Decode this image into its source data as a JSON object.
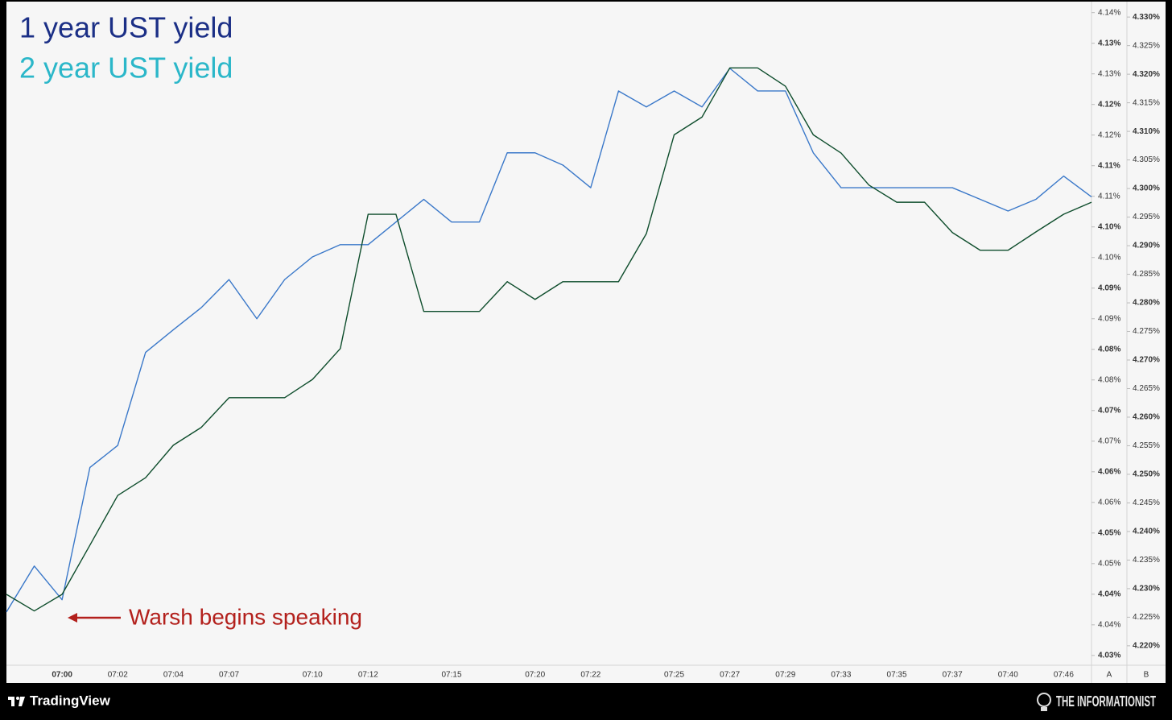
{
  "chart_data": {
    "type": "line",
    "annotation": "Warsh begins speaking",
    "annotation_color": "#b3201c",
    "footer_left": "TradingView",
    "footer_right": "THE INFORMATIONIST",
    "axis_labels": [
      "A",
      "B"
    ],
    "categories": [
      null,
      null,
      "07:00",
      null,
      "07:02",
      null,
      "07:04",
      null,
      "07:07",
      null,
      null,
      "07:10",
      null,
      "07:12",
      null,
      null,
      "07:15",
      null,
      null,
      "07:20",
      null,
      "07:22",
      null,
      null,
      "07:25",
      null,
      "07:27",
      null,
      "07:29",
      null,
      "07:33",
      null,
      "07:35",
      null,
      "07:37",
      null,
      "07:40",
      null,
      "07:46",
      null
    ],
    "series": [
      {
        "name": "1 year UST yield",
        "legend_color": "#1b2f86",
        "color": "#3a78c9",
        "axis": "y",
        "values": [
          4.0371,
          4.0446,
          4.0391,
          4.0607,
          4.0643,
          4.0795,
          4.0832,
          4.0868,
          4.0914,
          4.085,
          4.0914,
          4.0951,
          4.0971,
          4.0971,
          4.1008,
          4.1045,
          4.1008,
          4.1008,
          4.1121,
          4.1121,
          4.1101,
          4.1064,
          4.1222,
          4.1196,
          4.1222,
          4.1196,
          4.1259,
          4.1222,
          4.1222,
          4.1121,
          4.1064,
          4.1064,
          4.1064,
          4.1064,
          4.1064,
          4.1045,
          4.1026,
          4.1045,
          4.1083,
          4.1049
        ]
      },
      {
        "name": "2 year UST yield",
        "legend_color": "#2bb7c9",
        "color": "#0e4d2c",
        "axis": "y2",
        "values": [
          4.229,
          4.2261,
          4.229,
          4.2376,
          4.2463,
          4.2494,
          4.2551,
          4.2582,
          4.2634,
          4.2634,
          4.2634,
          4.2666,
          4.272,
          4.2955,
          4.2955,
          4.2785,
          4.2785,
          4.2785,
          4.2837,
          4.2806,
          4.2837,
          4.2837,
          4.2837,
          4.2921,
          4.3094,
          4.3125,
          4.3211,
          4.3211,
          4.3179,
          4.3094,
          4.3062,
          4.3006,
          4.2976,
          4.2976,
          4.2923,
          4.2892,
          4.2892,
          4.2924,
          4.2955,
          4.2976
        ]
      }
    ],
    "ylim": [
      4.0284,
      4.1368
    ],
    "yticks": [
      {
        "value": 4.135,
        "label": "4.14%"
      },
      {
        "value": 4.13,
        "label": "4.13%"
      },
      {
        "value": 4.125,
        "label": "4.13%"
      },
      {
        "value": 4.12,
        "label": "4.12%"
      },
      {
        "value": 4.115,
        "label": "4.12%"
      },
      {
        "value": 4.11,
        "label": "4.11%"
      },
      {
        "value": 4.105,
        "label": "4.11%"
      },
      {
        "value": 4.1,
        "label": "4.10%"
      },
      {
        "value": 4.095,
        "label": "4.10%"
      },
      {
        "value": 4.09,
        "label": "4.09%"
      },
      {
        "value": 4.085,
        "label": "4.09%"
      },
      {
        "value": 4.08,
        "label": "4.08%"
      },
      {
        "value": 4.075,
        "label": "4.08%"
      },
      {
        "value": 4.07,
        "label": "4.07%"
      },
      {
        "value": 4.065,
        "label": "4.07%"
      },
      {
        "value": 4.06,
        "label": "4.06%"
      },
      {
        "value": 4.055,
        "label": "4.06%"
      },
      {
        "value": 4.05,
        "label": "4.05%"
      },
      {
        "value": 4.045,
        "label": "4.05%"
      },
      {
        "value": 4.04,
        "label": "4.04%"
      },
      {
        "value": 4.035,
        "label": "4.04%"
      },
      {
        "value": 4.03,
        "label": "4.03%"
      }
    ],
    "y2lim": [
      4.2166,
      4.3327
    ],
    "y2ticks": [
      {
        "value": 4.33,
        "label": "4.330%"
      },
      {
        "value": 4.325,
        "label": "4.325%"
      },
      {
        "value": 4.32,
        "label": "4.320%"
      },
      {
        "value": 4.315,
        "label": "4.315%"
      },
      {
        "value": 4.31,
        "label": "4.310%"
      },
      {
        "value": 4.305,
        "label": "4.305%"
      },
      {
        "value": 4.3,
        "label": "4.300%"
      },
      {
        "value": 4.295,
        "label": "4.295%"
      },
      {
        "value": 4.29,
        "label": "4.290%"
      },
      {
        "value": 4.285,
        "label": "4.285%"
      },
      {
        "value": 4.28,
        "label": "4.280%"
      },
      {
        "value": 4.275,
        "label": "4.275%"
      },
      {
        "value": 4.27,
        "label": "4.270%"
      },
      {
        "value": 4.265,
        "label": "4.265%"
      },
      {
        "value": 4.26,
        "label": "4.260%"
      },
      {
        "value": 4.255,
        "label": "4.255%"
      },
      {
        "value": 4.25,
        "label": "4.250%"
      },
      {
        "value": 4.245,
        "label": "4.245%"
      },
      {
        "value": 4.24,
        "label": "4.240%"
      },
      {
        "value": 4.235,
        "label": "4.235%"
      },
      {
        "value": 4.23,
        "label": "4.230%"
      },
      {
        "value": 4.225,
        "label": "4.225%"
      },
      {
        "value": 4.22,
        "label": "4.220%"
      }
    ],
    "grid": false
  }
}
